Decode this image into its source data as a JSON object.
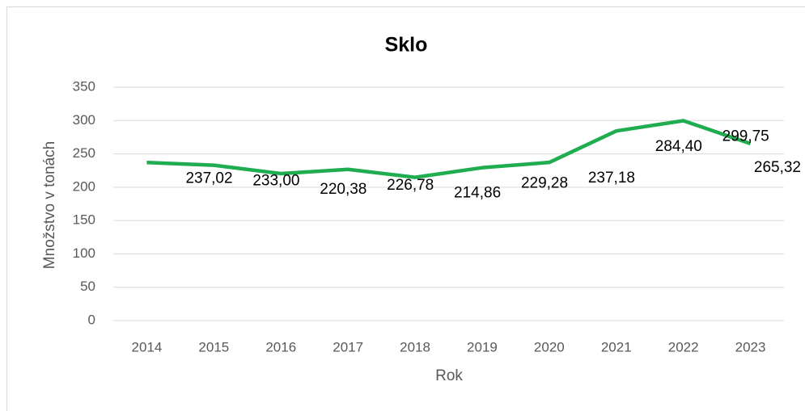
{
  "chart_data": {
    "type": "line",
    "title": "Sklo",
    "x_label": "Rok",
    "y_label": "Množstvo v tonách",
    "categories": [
      "2014",
      "2015",
      "2016",
      "2017",
      "2018",
      "2019",
      "2020",
      "2021",
      "2022",
      "2023"
    ],
    "series": [
      {
        "name": "Sklo",
        "color": "#1fad50",
        "values": [
          237.02,
          233.0,
          220.38,
          226.78,
          214.86,
          229.28,
          237.18,
          284.4,
          299.75,
          265.32
        ],
        "value_labels": [
          "237,02",
          "233,00",
          "220,38",
          "226,78",
          "214,86",
          "229,28",
          "237,18",
          "284,40",
          "299,75",
          "265,32"
        ]
      }
    ],
    "ylim": [
      0,
      350
    ],
    "yticks": [
      0,
      50,
      100,
      150,
      200,
      250,
      300,
      350
    ],
    "grid": true
  }
}
